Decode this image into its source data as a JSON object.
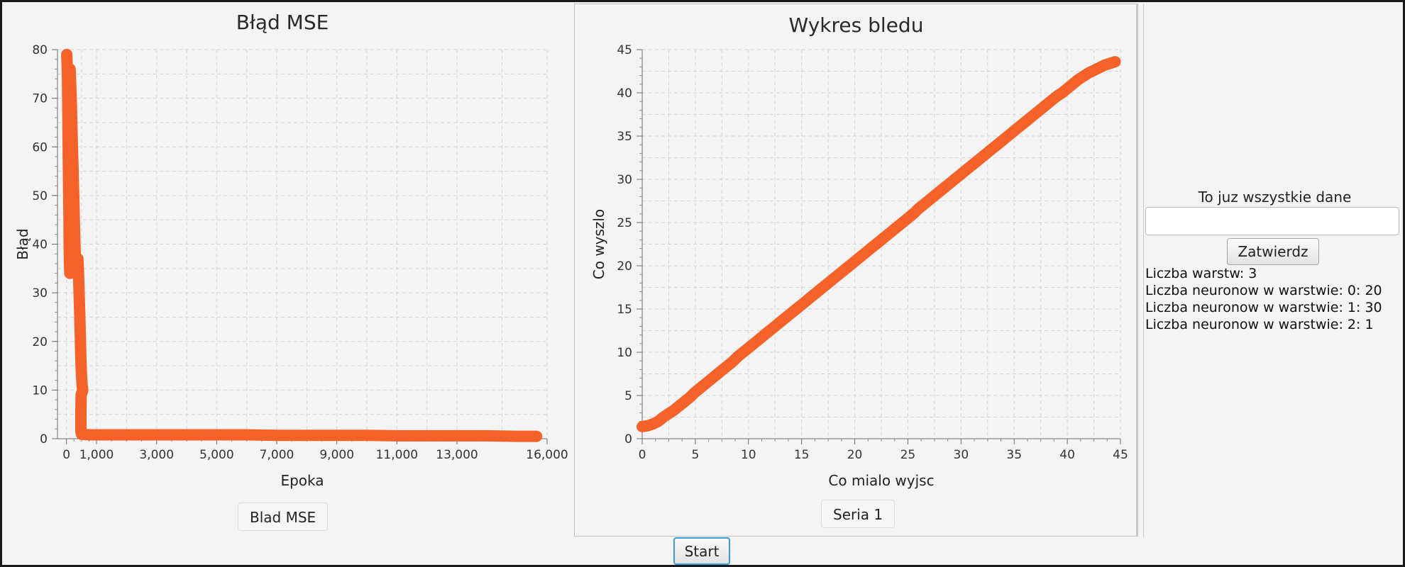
{
  "charts": {
    "mse": {
      "title": "Błąd MSE",
      "legend": "Blad MSE"
    },
    "error": {
      "title": "Wykres bledu",
      "legend": "Seria 1"
    }
  },
  "chart_data": [
    {
      "type": "scatter",
      "title": "Błąd MSE",
      "xlabel": "Epoka",
      "ylabel": "Błąd",
      "xlim": [
        -300,
        16000
      ],
      "ylim": [
        0,
        80
      ],
      "xticks": [
        0,
        1000,
        3000,
        5000,
        7000,
        9000,
        11000,
        13000,
        16000
      ],
      "xtick_labels": [
        "0",
        "1,000",
        "3,000",
        "5,000",
        "7,000",
        "9,000",
        "11,000",
        "13,000",
        "16,000"
      ],
      "yticks": [
        0,
        10,
        20,
        30,
        40,
        50,
        60,
        70,
        80
      ],
      "grid": true,
      "legend_position": "bottom",
      "series": [
        {
          "name": "Blad MSE",
          "color": "#f4622a",
          "points": [
            [
              10,
              79
            ],
            [
              30,
              75
            ],
            [
              40,
              70
            ],
            [
              50,
              64
            ],
            [
              60,
              58
            ],
            [
              70,
              52
            ],
            [
              80,
              47
            ],
            [
              90,
              40
            ],
            [
              100,
              36
            ],
            [
              110,
              34
            ],
            [
              120,
              76
            ],
            [
              140,
              73
            ],
            [
              160,
              69
            ],
            [
              180,
              64
            ],
            [
              200,
              59
            ],
            [
              220,
              55
            ],
            [
              240,
              50
            ],
            [
              260,
              45
            ],
            [
              280,
              40
            ],
            [
              300,
              36
            ],
            [
              320,
              35
            ],
            [
              340,
              34
            ],
            [
              360,
              36
            ],
            [
              380,
              37
            ],
            [
              400,
              34
            ],
            [
              420,
              30
            ],
            [
              440,
              26
            ],
            [
              460,
              21
            ],
            [
              480,
              16
            ],
            [
              500,
              13
            ],
            [
              520,
              11
            ],
            [
              540,
              10
            ],
            [
              490,
              9
            ],
            [
              480,
              6
            ],
            [
              480,
              2.5
            ],
            [
              480,
              1.5
            ],
            [
              500,
              0.9
            ],
            [
              800,
              0.8
            ],
            [
              1200,
              0.8
            ],
            [
              2000,
              0.8
            ],
            [
              3000,
              0.8
            ],
            [
              4000,
              0.8
            ],
            [
              5000,
              0.8
            ],
            [
              6000,
              0.8
            ],
            [
              7000,
              0.7
            ],
            [
              8000,
              0.7
            ],
            [
              9000,
              0.7
            ],
            [
              10000,
              0.7
            ],
            [
              11000,
              0.6
            ],
            [
              12000,
              0.6
            ],
            [
              13000,
              0.6
            ],
            [
              14000,
              0.6
            ],
            [
              15000,
              0.5
            ],
            [
              15500,
              0.5
            ],
            [
              15650,
              0.5
            ]
          ]
        }
      ]
    },
    {
      "type": "scatter",
      "title": "Wykres bledu",
      "xlabel": "Co mialo wyjsc",
      "ylabel": "Co wyszlo",
      "xlim": [
        0,
        45
      ],
      "ylim": [
        0,
        45
      ],
      "xticks": [
        0,
        5,
        10,
        15,
        20,
        25,
        30,
        35,
        40,
        45
      ],
      "yticks": [
        0,
        5,
        10,
        15,
        20,
        25,
        30,
        35,
        40,
        45
      ],
      "grid": true,
      "legend_position": "bottom",
      "series": [
        {
          "name": "Seria 1",
          "color": "#f4622a",
          "points": [
            [
              0.0,
              1.4
            ],
            [
              0.5,
              1.5
            ],
            [
              1.0,
              1.7
            ],
            [
              1.5,
              2.0
            ],
            [
              2.0,
              2.5
            ],
            [
              2.5,
              2.9
            ],
            [
              3.0,
              3.3
            ],
            [
              3.5,
              3.8
            ],
            [
              4.0,
              4.3
            ],
            [
              4.5,
              4.8
            ],
            [
              5.0,
              5.4
            ],
            [
              5.5,
              5.9
            ],
            [
              6.0,
              6.4
            ],
            [
              6.5,
              6.9
            ],
            [
              7.0,
              7.4
            ],
            [
              7.5,
              7.9
            ],
            [
              8.0,
              8.4
            ],
            [
              8.5,
              8.9
            ],
            [
              9.0,
              9.5
            ],
            [
              9.5,
              10.0
            ],
            [
              10.0,
              10.5
            ],
            [
              10.5,
              11.0
            ],
            [
              11.0,
              11.5
            ],
            [
              11.5,
              12.0
            ],
            [
              12.0,
              12.5
            ],
            [
              12.5,
              13.0
            ],
            [
              13.0,
              13.5
            ],
            [
              13.5,
              14.0
            ],
            [
              14.0,
              14.5
            ],
            [
              14.5,
              15.0
            ],
            [
              15.0,
              15.5
            ],
            [
              15.5,
              16.0
            ],
            [
              16.0,
              16.5
            ],
            [
              16.5,
              17.0
            ],
            [
              17.0,
              17.5
            ],
            [
              17.5,
              18.0
            ],
            [
              18.0,
              18.5
            ],
            [
              18.5,
              19.0
            ],
            [
              19.0,
              19.5
            ],
            [
              19.5,
              20.0
            ],
            [
              20.0,
              20.5
            ],
            [
              20.5,
              21.0
            ],
            [
              21.0,
              21.5
            ],
            [
              21.5,
              22.0
            ],
            [
              22.0,
              22.5
            ],
            [
              22.5,
              23.0
            ],
            [
              23.0,
              23.5
            ],
            [
              23.5,
              24.0
            ],
            [
              24.0,
              24.5
            ],
            [
              24.5,
              25.0
            ],
            [
              25.0,
              25.5
            ],
            [
              25.5,
              26.0
            ],
            [
              26.0,
              26.6
            ],
            [
              26.5,
              27.1
            ],
            [
              27.0,
              27.6
            ],
            [
              27.5,
              28.1
            ],
            [
              28.0,
              28.6
            ],
            [
              28.5,
              29.1
            ],
            [
              29.0,
              29.6
            ],
            [
              29.5,
              30.1
            ],
            [
              30.0,
              30.6
            ],
            [
              30.5,
              31.1
            ],
            [
              31.0,
              31.6
            ],
            [
              31.5,
              32.1
            ],
            [
              32.0,
              32.6
            ],
            [
              32.5,
              33.1
            ],
            [
              33.0,
              33.6
            ],
            [
              33.5,
              34.1
            ],
            [
              34.0,
              34.6
            ],
            [
              34.5,
              35.1
            ],
            [
              35.0,
              35.6
            ],
            [
              35.5,
              36.1
            ],
            [
              36.0,
              36.6
            ],
            [
              36.5,
              37.1
            ],
            [
              37.0,
              37.6
            ],
            [
              37.5,
              38.1
            ],
            [
              38.0,
              38.6
            ],
            [
              38.5,
              39.1
            ],
            [
              39.0,
              39.6
            ],
            [
              39.5,
              40.0
            ],
            [
              40.0,
              40.5
            ],
            [
              40.5,
              41.0
            ],
            [
              41.0,
              41.5
            ],
            [
              41.5,
              41.9
            ],
            [
              42.0,
              42.3
            ],
            [
              42.5,
              42.6
            ],
            [
              43.0,
              42.9
            ],
            [
              43.5,
              43.2
            ],
            [
              44.0,
              43.4
            ],
            [
              44.5,
              43.6
            ]
          ]
        }
      ]
    }
  ],
  "sidebar": {
    "heading": "To juz wszystkie dane",
    "input_value": "",
    "input_placeholder": "",
    "confirm_label": "Zatwierdz",
    "info": [
      "Liczba warstw: 3",
      "Liczba neuronow w warstwie: 0: 20",
      "Liczba neuronow w warstwie: 1: 30",
      "Liczba neuronow w warstwie: 2: 1"
    ]
  },
  "start_label": "Start"
}
